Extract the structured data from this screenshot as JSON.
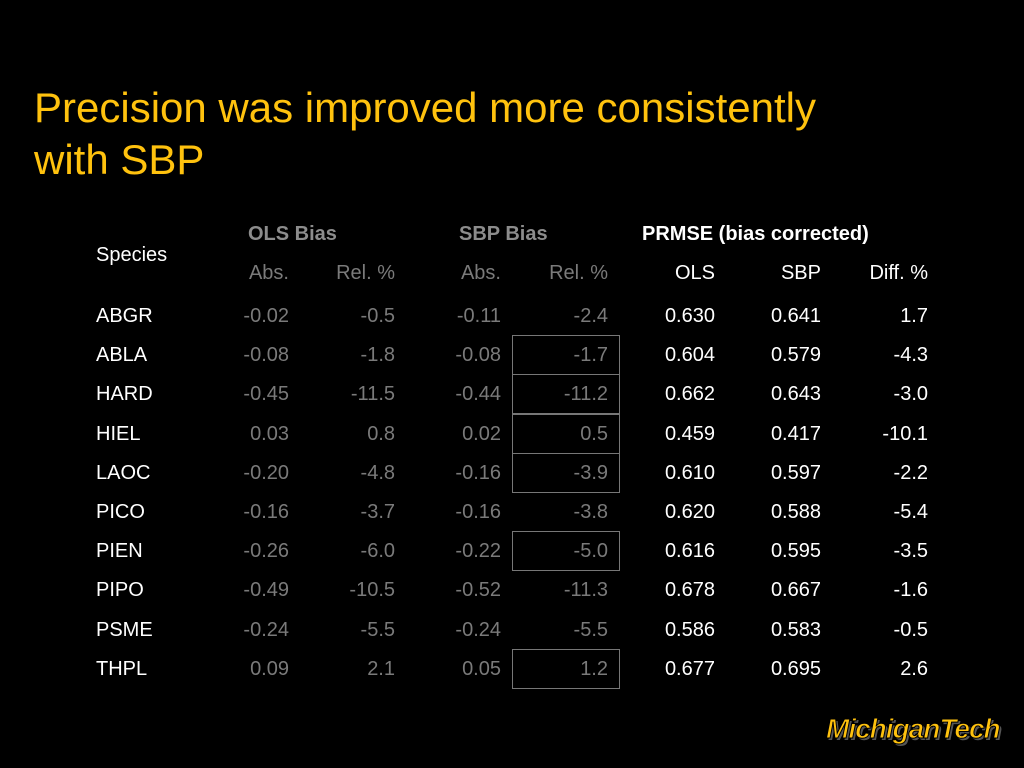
{
  "slide": {
    "title_line1": "Precision was improved more consistently",
    "title_line2": "with SBP",
    "logo_text": "MichiganTech"
  },
  "table": {
    "species_header": "Species",
    "group_headers": [
      "OLS Bias",
      "SBP Bias",
      "PRMSE (bias corrected)"
    ],
    "sub_headers": [
      "Abs.",
      "Rel. %",
      "Abs.",
      "Rel. %",
      "OLS",
      "SBP",
      "Diff. %"
    ],
    "rows": [
      {
        "species": "ABGR",
        "ols_abs": "-0.02",
        "ols_rel": "-0.5",
        "sbp_abs": "-0.11",
        "sbp_rel": "-2.4",
        "prmse_ols": "0.630",
        "prmse_sbp": "0.641",
        "diff": "1.7",
        "boxed": false
      },
      {
        "species": "ABLA",
        "ols_abs": "-0.08",
        "ols_rel": "-1.8",
        "sbp_abs": "-0.08",
        "sbp_rel": "-1.7",
        "prmse_ols": "0.604",
        "prmse_sbp": "0.579",
        "diff": "-4.3",
        "boxed": true
      },
      {
        "species": "HARD",
        "ols_abs": "-0.45",
        "ols_rel": "-11.5",
        "sbp_abs": "-0.44",
        "sbp_rel": "-11.2",
        "prmse_ols": "0.662",
        "prmse_sbp": "0.643",
        "diff": "-3.0",
        "boxed": true
      },
      {
        "species": "HIEL",
        "ols_abs": "0.03",
        "ols_rel": "0.8",
        "sbp_abs": "0.02",
        "sbp_rel": "0.5",
        "prmse_ols": "0.459",
        "prmse_sbp": "0.417",
        "diff": "-10.1",
        "boxed": true
      },
      {
        "species": "LAOC",
        "ols_abs": "-0.20",
        "ols_rel": "-4.8",
        "sbp_abs": "-0.16",
        "sbp_rel": "-3.9",
        "prmse_ols": "0.610",
        "prmse_sbp": "0.597",
        "diff": "-2.2",
        "boxed": true
      },
      {
        "species": "PICO",
        "ols_abs": "-0.16",
        "ols_rel": "-3.7",
        "sbp_abs": "-0.16",
        "sbp_rel": "-3.8",
        "prmse_ols": "0.620",
        "prmse_sbp": "0.588",
        "diff": "-5.4",
        "boxed": false
      },
      {
        "species": "PIEN",
        "ols_abs": "-0.26",
        "ols_rel": "-6.0",
        "sbp_abs": "-0.22",
        "sbp_rel": "-5.0",
        "prmse_ols": "0.616",
        "prmse_sbp": "0.595",
        "diff": "-3.5",
        "boxed": true
      },
      {
        "species": "PIPO",
        "ols_abs": "-0.49",
        "ols_rel": "-10.5",
        "sbp_abs": "-0.52",
        "sbp_rel": "-11.3",
        "prmse_ols": "0.678",
        "prmse_sbp": "0.667",
        "diff": "-1.6",
        "boxed": false
      },
      {
        "species": "PSME",
        "ols_abs": "-0.24",
        "ols_rel": "-5.5",
        "sbp_abs": "-0.24",
        "sbp_rel": "-5.5",
        "prmse_ols": "0.586",
        "prmse_sbp": "0.583",
        "diff": "-0.5",
        "boxed": false
      },
      {
        "species": "THPL",
        "ols_abs": "0.09",
        "ols_rel": "2.1",
        "sbp_abs": "0.05",
        "sbp_rel": "1.2",
        "prmse_ols": "0.677",
        "prmse_sbp": "0.695",
        "diff": "2.6",
        "boxed": true
      }
    ]
  },
  "colors": {
    "background": "#000000",
    "title": "#ffc20e",
    "bias_values": "#7a7a7a",
    "prmse_values": "#ffffff"
  }
}
